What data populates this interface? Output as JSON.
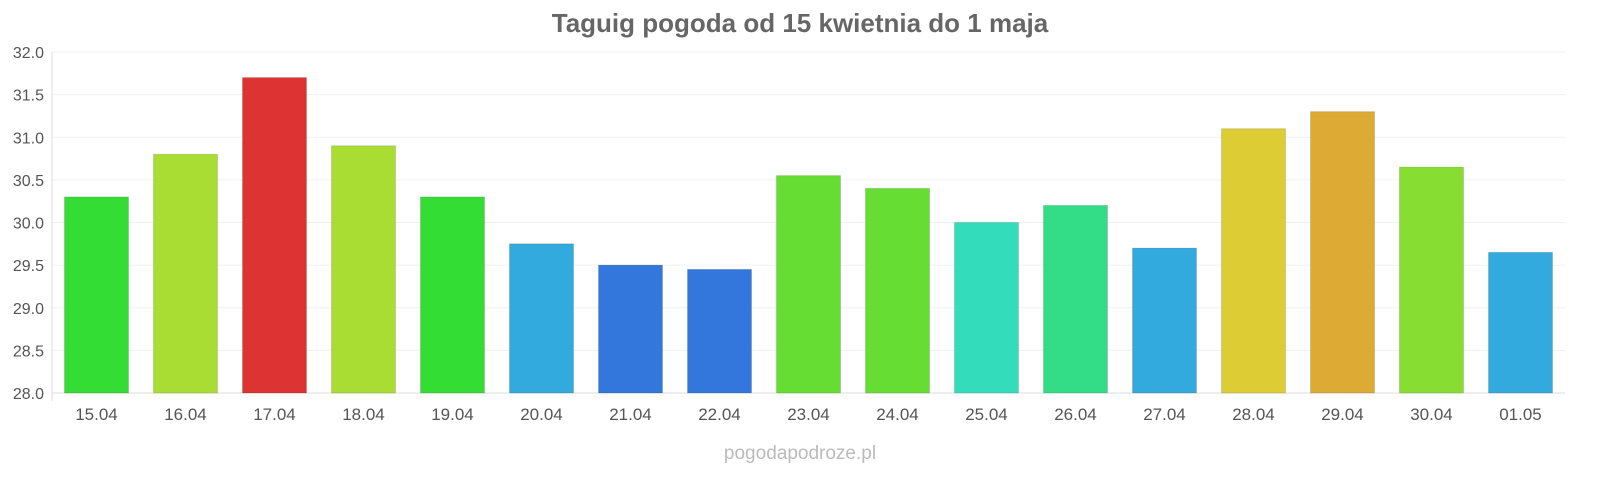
{
  "chart_data": {
    "type": "bar",
    "title": "Taguig pogoda od 15 kwietnia do 1 maja",
    "xlabel": "",
    "ylabel": "",
    "ylim": [
      28.0,
      32.0
    ],
    "yticks": [
      "28.0",
      "28.5",
      "29.0",
      "29.5",
      "30.0",
      "30.5",
      "31.0",
      "31.5",
      "32.0"
    ],
    "grid": true,
    "categories": [
      "15.04",
      "16.04",
      "17.04",
      "18.04",
      "19.04",
      "20.04",
      "21.04",
      "22.04",
      "23.04",
      "24.04",
      "25.04",
      "26.04",
      "27.04",
      "28.04",
      "29.04",
      "30.04",
      "01.05"
    ],
    "values": [
      30.3,
      30.8,
      31.7,
      30.9,
      30.3,
      29.75,
      29.5,
      29.45,
      30.55,
      30.4,
      30.0,
      30.2,
      29.7,
      31.1,
      31.3,
      30.65,
      29.65
    ],
    "colors": [
      "#33dd33",
      "#aadd33",
      "#dd3333",
      "#aadd33",
      "#33dd33",
      "#33aadd",
      "#3377dd",
      "#3377dd",
      "#66dd33",
      "#66dd33",
      "#33ddbb",
      "#33dd88",
      "#33aadd",
      "#ddcc33",
      "#ddaa33",
      "#88dd33",
      "#33aadd"
    ]
  },
  "watermark": "pogodapodroze.pl"
}
